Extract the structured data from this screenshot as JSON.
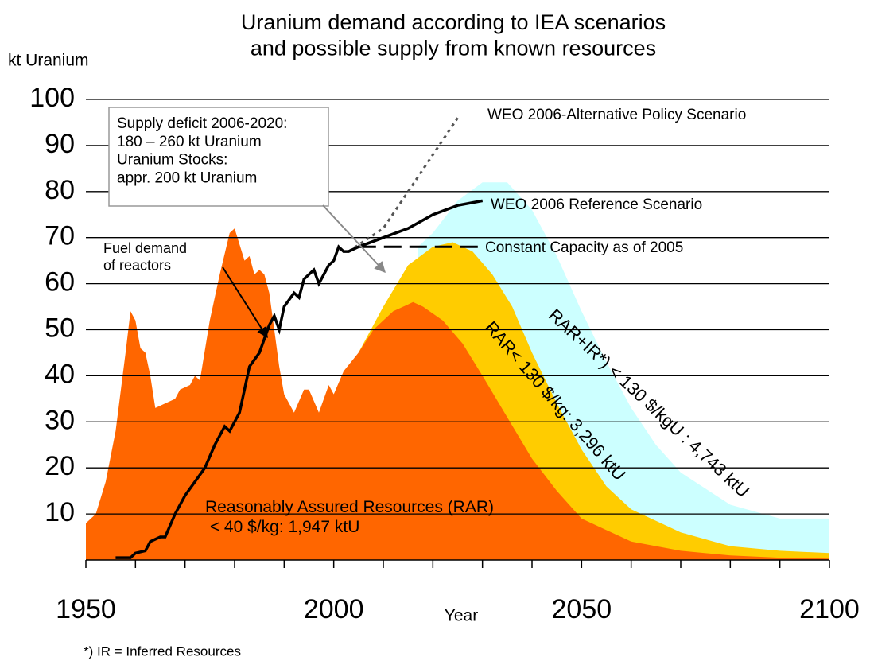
{
  "chart_data": {
    "type": "area",
    "title": "Uranium demand according to IEA scenarios\nand possible supply from known resources",
    "y_label": "kt Uranium",
    "x_label": "Year",
    "footnote": "*) IR = Inferred Resources",
    "xlim": [
      1950,
      2100
    ],
    "ylim": [
      0,
      100
    ],
    "xticks": [
      1950,
      2000,
      2050,
      2100
    ],
    "xticks_minor": [
      1960,
      1970,
      1980,
      1990,
      2010,
      2020,
      2030,
      2040,
      2060,
      2070,
      2080,
      2090
    ],
    "yticks": [
      10,
      20,
      30,
      40,
      50,
      60,
      70,
      80,
      90,
      100
    ],
    "grid": true,
    "series": [
      {
        "name": "RAR+IR*) < 130 $/kgU : 4,743 ktU",
        "kind": "area",
        "color": "#ccffff",
        "x": [
          2017,
          2020,
          2025,
          2030,
          2035,
          2040,
          2045,
          2050,
          2055,
          2060,
          2065,
          2070,
          2080,
          2090,
          2100
        ],
        "values": [
          68,
          71,
          78,
          82,
          82,
          76,
          66,
          54,
          43,
          33,
          25,
          19,
          12,
          9,
          9
        ]
      },
      {
        "name": "RAR< 130 $/kg: 3,296 ktU",
        "kind": "area",
        "color": "#ffcc00",
        "x": [
          2005,
          2010,
          2015,
          2020,
          2024,
          2028,
          2032,
          2036,
          2040,
          2045,
          2050,
          2055,
          2060,
          2070,
          2080,
          2090,
          2100
        ],
        "values": [
          45,
          55,
          64,
          68,
          69,
          67,
          62,
          55,
          45,
          34,
          24,
          16,
          11,
          6,
          3,
          2,
          1.5
        ]
      },
      {
        "name": "Reasonably Assured Resources (RAR)\n < 40 $/kg: 1,947 ktU",
        "kind": "area",
        "color": "#ff6600",
        "x": [
          1950,
          1952,
          1954,
          1956,
          1958,
          1959,
          1960,
          1961,
          1962,
          1963,
          1964,
          1966,
          1968,
          1969,
          1971,
          1972,
          1973,
          1975,
          1977,
          1979,
          1980,
          1982,
          1983,
          1984,
          1985,
          1986,
          1987,
          1988,
          1989,
          1990,
          1992,
          1994,
          1995,
          1997,
          1999,
          2000,
          2002,
          2005,
          2008,
          2012,
          2016,
          2018,
          2022,
          2026,
          2030,
          2035,
          2040,
          2045,
          2050,
          2060,
          2070,
          2080,
          2090,
          2100
        ],
        "values": [
          8,
          10,
          17,
          28,
          45,
          54,
          52,
          46,
          45,
          40,
          33,
          34,
          35,
          37,
          38,
          40,
          39,
          52,
          62,
          71,
          72,
          65,
          66,
          62,
          63,
          62,
          58,
          50,
          42,
          36,
          32,
          37,
          37,
          32,
          38,
          36,
          41,
          45,
          50,
          54,
          56,
          55,
          52,
          47,
          40,
          31,
          22,
          15,
          9,
          4,
          2,
          1,
          0.5,
          0.3
        ]
      },
      {
        "name": "WEO 2006-Alternative Policy Scenario",
        "kind": "dotted",
        "color": "#555555",
        "x": [
          2003,
          2010,
          2015,
          2020,
          2025
        ],
        "values": [
          67,
          72,
          80,
          88,
          96
        ]
      },
      {
        "name": "Constant Capacity as of 2005",
        "kind": "dashed",
        "color": "#000000",
        "x": [
          2005,
          2030
        ],
        "values": [
          68,
          68
        ]
      },
      {
        "name": "WEO 2006 Reference Scenario",
        "kind": "line",
        "color": "#000000",
        "x": [
          1956,
          1959,
          1960,
          1962,
          1963,
          1965,
          1966,
          1968,
          1970,
          1972,
          1974,
          1976,
          1978,
          1979,
          1981,
          1983,
          1985,
          1987,
          1988,
          1989,
          1990,
          1992,
          1993,
          1994,
          1995,
          1996,
          1997,
          1998,
          1999,
          2000,
          2001,
          2002,
          2003,
          2005,
          2010,
          2015,
          2020,
          2025,
          2030
        ],
        "values": [
          0.5,
          0.5,
          1.5,
          2,
          4,
          5,
          5,
          10,
          14,
          17,
          20,
          25,
          29,
          28,
          32,
          42,
          45,
          51,
          53,
          50,
          55,
          58,
          57,
          61,
          62,
          63,
          60,
          62,
          64,
          65,
          68,
          67,
          67,
          68,
          70,
          72,
          75,
          77,
          78
        ]
      }
    ],
    "annotations": [
      "Supply deficit 2006-2020:\n180 – 260 kt Uranium\nUranium Stocks:\nappr. 200 kt Uranium",
      "Fuel demand\nof reactors"
    ]
  }
}
